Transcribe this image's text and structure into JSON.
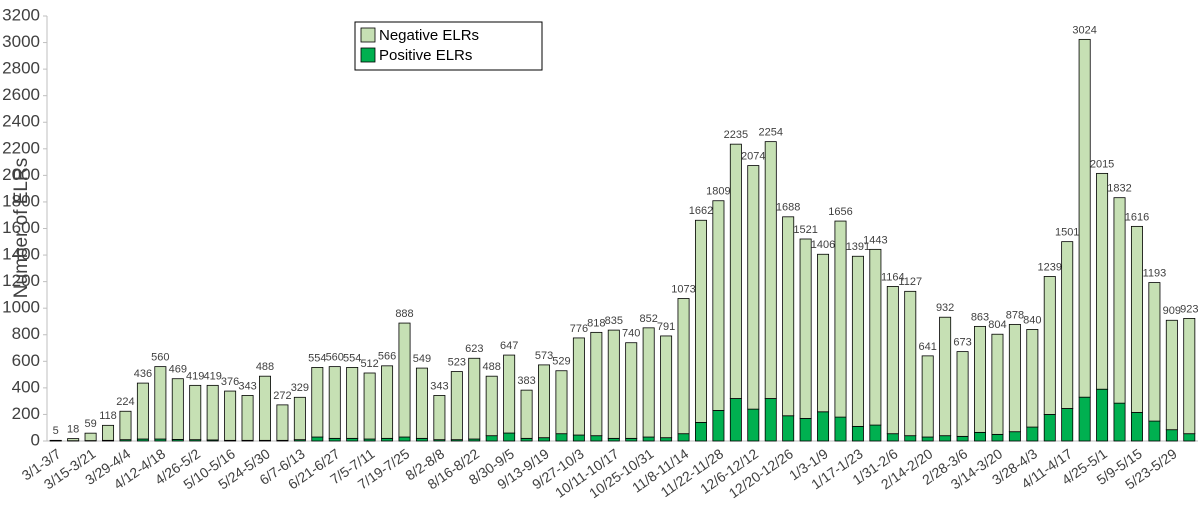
{
  "chart_data": {
    "type": "stacked_bar",
    "y_label": "Number of ELRs",
    "categories": [
      "3/1-3/7",
      null,
      "3/15-3/21",
      null,
      "3/29-4/4",
      null,
      "4/12-4/18",
      null,
      "4/26-5/2",
      null,
      "5/10-5/16",
      null,
      "5/24-5/30",
      null,
      "6/7-6/13",
      null,
      "6/21-6/27",
      null,
      "7/5-7/11",
      null,
      "7/19-7/25",
      null,
      "8/2-8/8",
      null,
      "8/16-8/22",
      null,
      "8/30-9/5",
      null,
      "9/13-9/19",
      null,
      "9/27-10/3",
      null,
      "10/11-10/17",
      null,
      "10/25-10/31",
      null,
      "11/8-11/14",
      null,
      "11/22-11/28",
      null,
      "12/6-12/12",
      null,
      "12/20-12/26",
      null,
      "1/3-1/9",
      null,
      "1/17-1/23",
      null,
      "1/31-2/6",
      null,
      "2/14-2/20",
      null,
      "2/28-3/6",
      null,
      "3/14-3/20",
      null,
      "3/28-4/3",
      null,
      "4/11-4/17",
      null,
      "4/25-5/1",
      null,
      "5/9-5/15",
      null,
      "5/23-5/29",
      null
    ],
    "series": [
      {
        "name": "Positive ELRs",
        "color": "#00b050",
        "values": [
          2,
          2,
          3,
          5,
          10,
          15,
          15,
          12,
          10,
          8,
          5,
          5,
          5,
          5,
          10,
          30,
          20,
          20,
          15,
          20,
          30,
          20,
          10,
          10,
          15,
          40,
          60,
          20,
          25,
          55,
          45,
          40,
          20,
          20,
          30,
          25,
          55,
          140,
          230,
          320,
          240,
          320,
          190,
          170,
          220,
          180,
          110,
          120,
          55,
          40,
          30,
          40,
          35,
          65,
          50,
          70,
          105,
          200,
          245,
          330,
          390,
          285,
          215,
          150,
          85,
          55
        ]
      },
      {
        "name": "Negative ELRs",
        "color": "#c6e0b4",
        "values": [
          3,
          16,
          56,
          113,
          214,
          421,
          545,
          457,
          409,
          411,
          371,
          338,
          483,
          267,
          319,
          524,
          540,
          534,
          497,
          546,
          858,
          529,
          333,
          513,
          608,
          448,
          587,
          363,
          548,
          474,
          731,
          778,
          815,
          720,
          822,
          766,
          1018,
          1522,
          1579,
          1915,
          1834,
          1934,
          1498,
          1351,
          1186,
          1476,
          1281,
          1323,
          1109,
          1087,
          611,
          892,
          638,
          798,
          754,
          808,
          735,
          1039,
          1256,
          2694,
          1625,
          1547,
          1401,
          1043,
          824,
          868
        ]
      }
    ],
    "totals": [
      5,
      18,
      59,
      118,
      224,
      436,
      560,
      469,
      419,
      419,
      376,
      343,
      488,
      272,
      329,
      554,
      560,
      554,
      512,
      566,
      888,
      549,
      343,
      523,
      623,
      488,
      647,
      383,
      573,
      529,
      776,
      818,
      835,
      740,
      852,
      791,
      1073,
      1662,
      1809,
      2235,
      2074,
      2254,
      1688,
      1521,
      1406,
      1656,
      1391,
      1443,
      1164,
      1127,
      641,
      932,
      673,
      863,
      804,
      878,
      840,
      1239,
      1501,
      3024,
      2015,
      1832,
      1616,
      1193,
      909,
      923
    ],
    "ylim": [
      0,
      3200
    ],
    "yticks": [
      0,
      200,
      400,
      600,
      800,
      1000,
      1200,
      1400,
      1600,
      1800,
      2000,
      2200,
      2400,
      2600,
      2800,
      3000,
      3200
    ],
    "legend": "top-left"
  }
}
